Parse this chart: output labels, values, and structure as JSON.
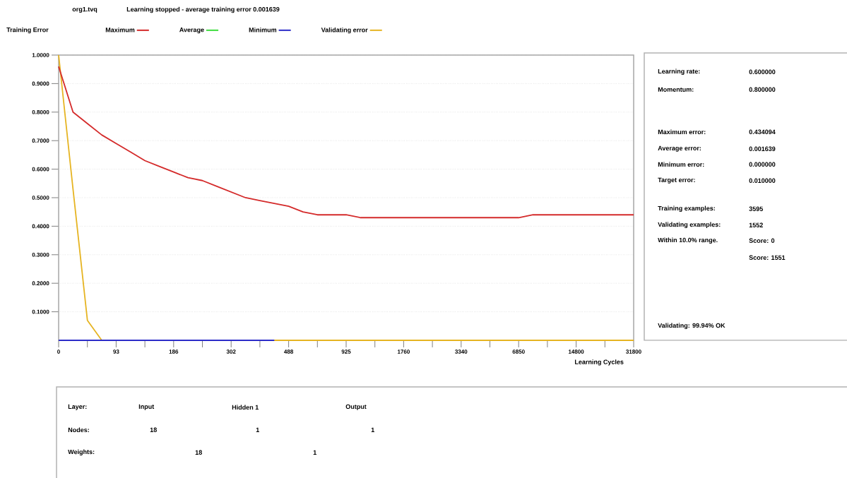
{
  "chart_data": [
    {
      "type": "line",
      "title": "org1.tvq",
      "subtitle": "Learning stopped - average training error 0.001639",
      "legend_title": "Training Error",
      "legend": "top",
      "grid": "y",
      "xlabel": "Learning Cycles",
      "categories": [
        "0",
        null,
        null,
        null,
        "93",
        null,
        null,
        null,
        "186",
        null,
        null,
        null,
        "302",
        null,
        null,
        null,
        "488",
        null,
        null,
        null,
        "925",
        null,
        null,
        null,
        "1760",
        null,
        null,
        null,
        "3340",
        null,
        null,
        null,
        "6850",
        null,
        null,
        null,
        "14800",
        null,
        null,
        null,
        "31800"
      ],
      "ylim": [
        0,
        1
      ],
      "yticks": [
        {
          "value": 0.1,
          "label": "0.1000"
        },
        {
          "value": 0.2,
          "label": "0.2000"
        },
        {
          "value": 0.3,
          "label": "0.3000"
        },
        {
          "value": 0.4,
          "label": "0.4000"
        },
        {
          "value": 0.5,
          "label": "0.5000"
        },
        {
          "value": 0.6,
          "label": "0.6000"
        },
        {
          "value": 0.7,
          "label": "0.7000"
        },
        {
          "value": 0.8,
          "label": "0.8000"
        },
        {
          "value": 0.9,
          "label": "0.9000"
        },
        {
          "value": 1.0,
          "label": "1.0000"
        }
      ],
      "series": [
        {
          "name": "Maximum",
          "color": "#d42a2a",
          "values": [
            0.96,
            0.8,
            0.76,
            0.72,
            0.69,
            0.66,
            0.63,
            0.61,
            0.59,
            0.57,
            0.56,
            0.54,
            0.52,
            0.5,
            0.49,
            0.48,
            0.47,
            0.45,
            0.44,
            0.44,
            0.44,
            0.43,
            0.43,
            0.43,
            0.43,
            0.43,
            0.43,
            0.43,
            0.43,
            0.43,
            0.43,
            0.43,
            0.43,
            0.44,
            0.44,
            0.44,
            0.44,
            0.44,
            0.44,
            0.44,
            0.44
          ]
        },
        {
          "name": "Average",
          "color": "#3ddc3d",
          "values": [
            null,
            null,
            null,
            null,
            null,
            null,
            null,
            null,
            null,
            null,
            null,
            null,
            null,
            null,
            null,
            null,
            null,
            null,
            null,
            null,
            null,
            null,
            null,
            null,
            null,
            null,
            null,
            null,
            null,
            null,
            null,
            null,
            null,
            null,
            null,
            null,
            null,
            null,
            null,
            null,
            null
          ]
        },
        {
          "name": "Minimum",
          "color": "#2d2dc8",
          "values": [
            0,
            0,
            0,
            0,
            0,
            0,
            0,
            0,
            0,
            0,
            0,
            0,
            0,
            0,
            0,
            0,
            null,
            null,
            null,
            null,
            null,
            null,
            null,
            null,
            null,
            null,
            null,
            null,
            null,
            null,
            null,
            null,
            null,
            null,
            null,
            null,
            null,
            null,
            null,
            null,
            null
          ]
        },
        {
          "name": "Validating error",
          "color": "#e6b422",
          "values": [
            1.0,
            0.53,
            0.07,
            0,
            0,
            0,
            0,
            0,
            0,
            0,
            0,
            0,
            0,
            0,
            0,
            0,
            0,
            0,
            0,
            0,
            0,
            0,
            0,
            0,
            0,
            0,
            0,
            0,
            0,
            0,
            0,
            0,
            0,
            0,
            0,
            0,
            0,
            0,
            0,
            0,
            0
          ]
        }
      ]
    },
    {
      "type": "other",
      "annotations": [
        "Learning rate:",
        "0.600000",
        "Momentum:",
        "0.800000",
        "Maximum error:",
        "0.434094",
        "Average error:",
        "0.001639",
        "Minimum error:",
        "0.000000",
        "Target error:",
        "0.010000",
        "Training examples:",
        "3595",
        "Validating examples:",
        "1552",
        "Within 10.0% range.",
        "Score: 0",
        "Score: 1551",
        "Validating: 99.94% OK"
      ]
    },
    {
      "type": "other",
      "annotations": [
        "Layer:",
        "Input",
        "Hidden 1",
        "Output",
        "Nodes:",
        "18",
        "1",
        "1",
        "Weights:",
        "18",
        "1"
      ]
    }
  ]
}
